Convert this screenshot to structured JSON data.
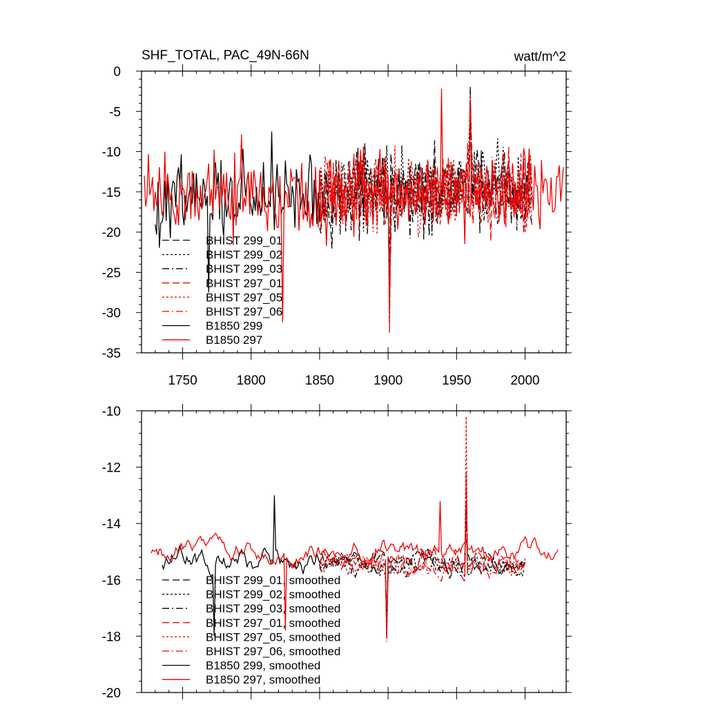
{
  "header": {
    "title": "SHF_TOTAL, PAC_49N-66N",
    "units": "watt/m^2"
  },
  "colors": {
    "black": "#000000",
    "red": "#ee0000"
  },
  "chart_data": [
    {
      "type": "line",
      "panel": "top",
      "xlim": [
        1720,
        2030
      ],
      "ylim": [
        -35,
        0
      ],
      "x_ticks": [
        1750,
        1800,
        1850,
        1900,
        1950,
        2000
      ],
      "x_tick_labels": [
        "1750",
        "1800",
        "1850",
        "1900",
        "1950",
        "2000"
      ],
      "y_ticks": [
        0,
        -5,
        -10,
        -15,
        -20,
        -25,
        -30,
        -35
      ],
      "y_tick_labels": [
        "0",
        "-5",
        "-10",
        "-15",
        "-20",
        "-25",
        "-30",
        "-35"
      ],
      "legend_placement": "bottom-left",
      "grid": false,
      "series": [
        {
          "name": "BHIST 299_01",
          "color": "#000000",
          "dash": "long-dash",
          "x_start": 1850,
          "x_end": 2005,
          "mean": -15.2,
          "amp": 3.6,
          "min": -25.6,
          "max": -4.2
        },
        {
          "name": "BHIST 299_02",
          "color": "#000000",
          "dash": "dot",
          "x_start": 1850,
          "x_end": 2005,
          "mean": -15.0,
          "amp": 3.8,
          "min": -31.3,
          "max": -3.5
        },
        {
          "name": "BHIST 299_03",
          "color": "#000000",
          "dash": "dash-dot",
          "x_start": 1850,
          "x_end": 2005,
          "mean": -15.1,
          "amp": 3.7,
          "min": -28.7,
          "max": -1.8
        },
        {
          "name": "BHIST 297_01",
          "color": "#ee0000",
          "dash": "long-dash",
          "x_start": 1850,
          "x_end": 2005,
          "mean": -14.8,
          "amp": 3.6,
          "min": -32.5,
          "max": -3.0
        },
        {
          "name": "BHIST 297_05",
          "color": "#ee0000",
          "dash": "dot",
          "x_start": 1850,
          "x_end": 2005,
          "mean": -15.0,
          "amp": 3.7,
          "min": -29.0,
          "max": -4.0
        },
        {
          "name": "BHIST 297_06",
          "color": "#ee0000",
          "dash": "dash-dot",
          "x_start": 1850,
          "x_end": 2005,
          "mean": -14.9,
          "amp": 3.6,
          "min": -27.5,
          "max": -3.3
        },
        {
          "name": "B1850 299",
          "color": "#000000",
          "dash": "solid",
          "x_start": 1730,
          "x_end": 1850,
          "mean": -15.3,
          "amp": 3.7,
          "min": -27.5,
          "max": -7.5
        },
        {
          "name": "B1850 297",
          "color": "#ee0000",
          "dash": "solid",
          "x_start": 1722,
          "x_end": 2028,
          "mean": -15.0,
          "amp": 3.8,
          "min": -31.2,
          "max": -2.2
        }
      ]
    },
    {
      "type": "line",
      "panel": "bottom",
      "xlim": [
        1720,
        2030
      ],
      "ylim": [
        -20,
        -10
      ],
      "x_ticks": [
        1750,
        1800,
        1850,
        1900,
        1950,
        2000
      ],
      "y_ticks": [
        -10,
        -12,
        -14,
        -16,
        -18,
        -20
      ],
      "y_tick_labels": [
        "-10",
        "-12",
        "-14",
        "-16",
        "-18",
        "-20"
      ],
      "legend_placement": "bottom-left",
      "grid": false,
      "series": [
        {
          "name": "BHIST 299_01, smoothed",
          "color": "#000000",
          "dash": "long-dash",
          "x_start": 1850,
          "x_end": 2000,
          "mean": -15.4,
          "amp": 0.8,
          "min": -18.1,
          "max": -12.8
        },
        {
          "name": "BHIST 299_02, smoothed",
          "color": "#000000",
          "dash": "dot",
          "x_start": 1850,
          "x_end": 2000,
          "mean": -15.5,
          "amp": 0.8,
          "min": -17.6,
          "max": -13.5
        },
        {
          "name": "BHIST 299_03, smoothed",
          "color": "#000000",
          "dash": "dash-dot",
          "x_start": 1850,
          "x_end": 2000,
          "mean": -15.4,
          "amp": 0.8,
          "min": -17.5,
          "max": -13.2
        },
        {
          "name": "BHIST 297_01, smoothed",
          "color": "#ee0000",
          "dash": "long-dash",
          "x_start": 1850,
          "x_end": 2000,
          "mean": -15.3,
          "amp": 0.8,
          "min": -17.8,
          "max": -13.2
        },
        {
          "name": "BHIST 297_05, smoothed",
          "color": "#ee0000",
          "dash": "dot",
          "x_start": 1850,
          "x_end": 2000,
          "mean": -15.5,
          "amp": 0.8,
          "min": -18.2,
          "max": -10.2
        },
        {
          "name": "BHIST 297_06, smoothed",
          "color": "#ee0000",
          "dash": "dash-dot",
          "x_start": 1850,
          "x_end": 2000,
          "mean": -15.4,
          "amp": 0.8,
          "min": -18.0,
          "max": -12.2
        },
        {
          "name": "B1850 299, smoothed",
          "color": "#000000",
          "dash": "solid",
          "x_start": 1735,
          "x_end": 1850,
          "mean": -15.4,
          "amp": 1.0,
          "min": -18.0,
          "max": -13.0
        },
        {
          "name": "B1850 297, smoothed",
          "color": "#ee0000",
          "dash": "solid",
          "x_start": 1727,
          "x_end": 2024,
          "mean": -15.0,
          "amp": 0.8,
          "min": -17.8,
          "max": -13.2
        }
      ]
    }
  ]
}
